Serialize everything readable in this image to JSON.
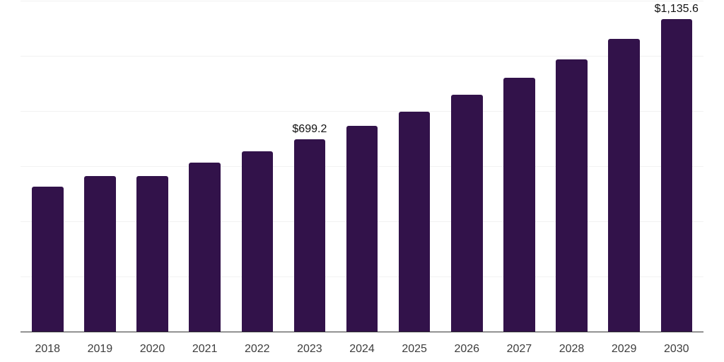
{
  "chart_data": {
    "type": "bar",
    "title": "",
    "categories": [
      "2018",
      "2019",
      "2020",
      "2021",
      "2022",
      "2023",
      "2024",
      "2025",
      "2026",
      "2027",
      "2028",
      "2029",
      "2030"
    ],
    "values": [
      528.5,
      566.5,
      565.5,
      615.0,
      656.5,
      699.2,
      749.9,
      801.0,
      861.2,
      922.5,
      990.0,
      1063.0,
      1135.6
    ],
    "point_labels": {
      "2023": "$699.2",
      "2030": "$1,135.6"
    },
    "unit_prefix": "$",
    "xlabel": "",
    "ylabel": "",
    "ylim": [
      0,
      1200
    ],
    "gridline_step": 200,
    "grid": true,
    "legend_position": "none",
    "colors": {
      "bar": "#32124a",
      "axis": "#333333",
      "gridline": "#f2f2f2",
      "value_label": "#111111",
      "tick_label": "#3d3d3d",
      "background": "#ffffff"
    }
  }
}
